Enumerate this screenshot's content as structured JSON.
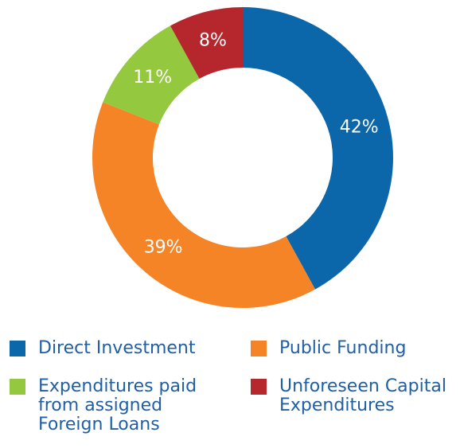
{
  "chart_data": {
    "type": "donut",
    "categories": [
      "Direct Investment",
      "Public Funding",
      "Expenditures paid from assigned Foreign Loans",
      "Unforeseen Capital Expenditures"
    ],
    "values": [
      42,
      39,
      11,
      8
    ],
    "value_labels": [
      "42%",
      "39%",
      "11%",
      "8%"
    ],
    "colors": [
      "#0b67a9",
      "#f58426",
      "#94c83e",
      "#b5272d"
    ],
    "legend": "bottom"
  }
}
